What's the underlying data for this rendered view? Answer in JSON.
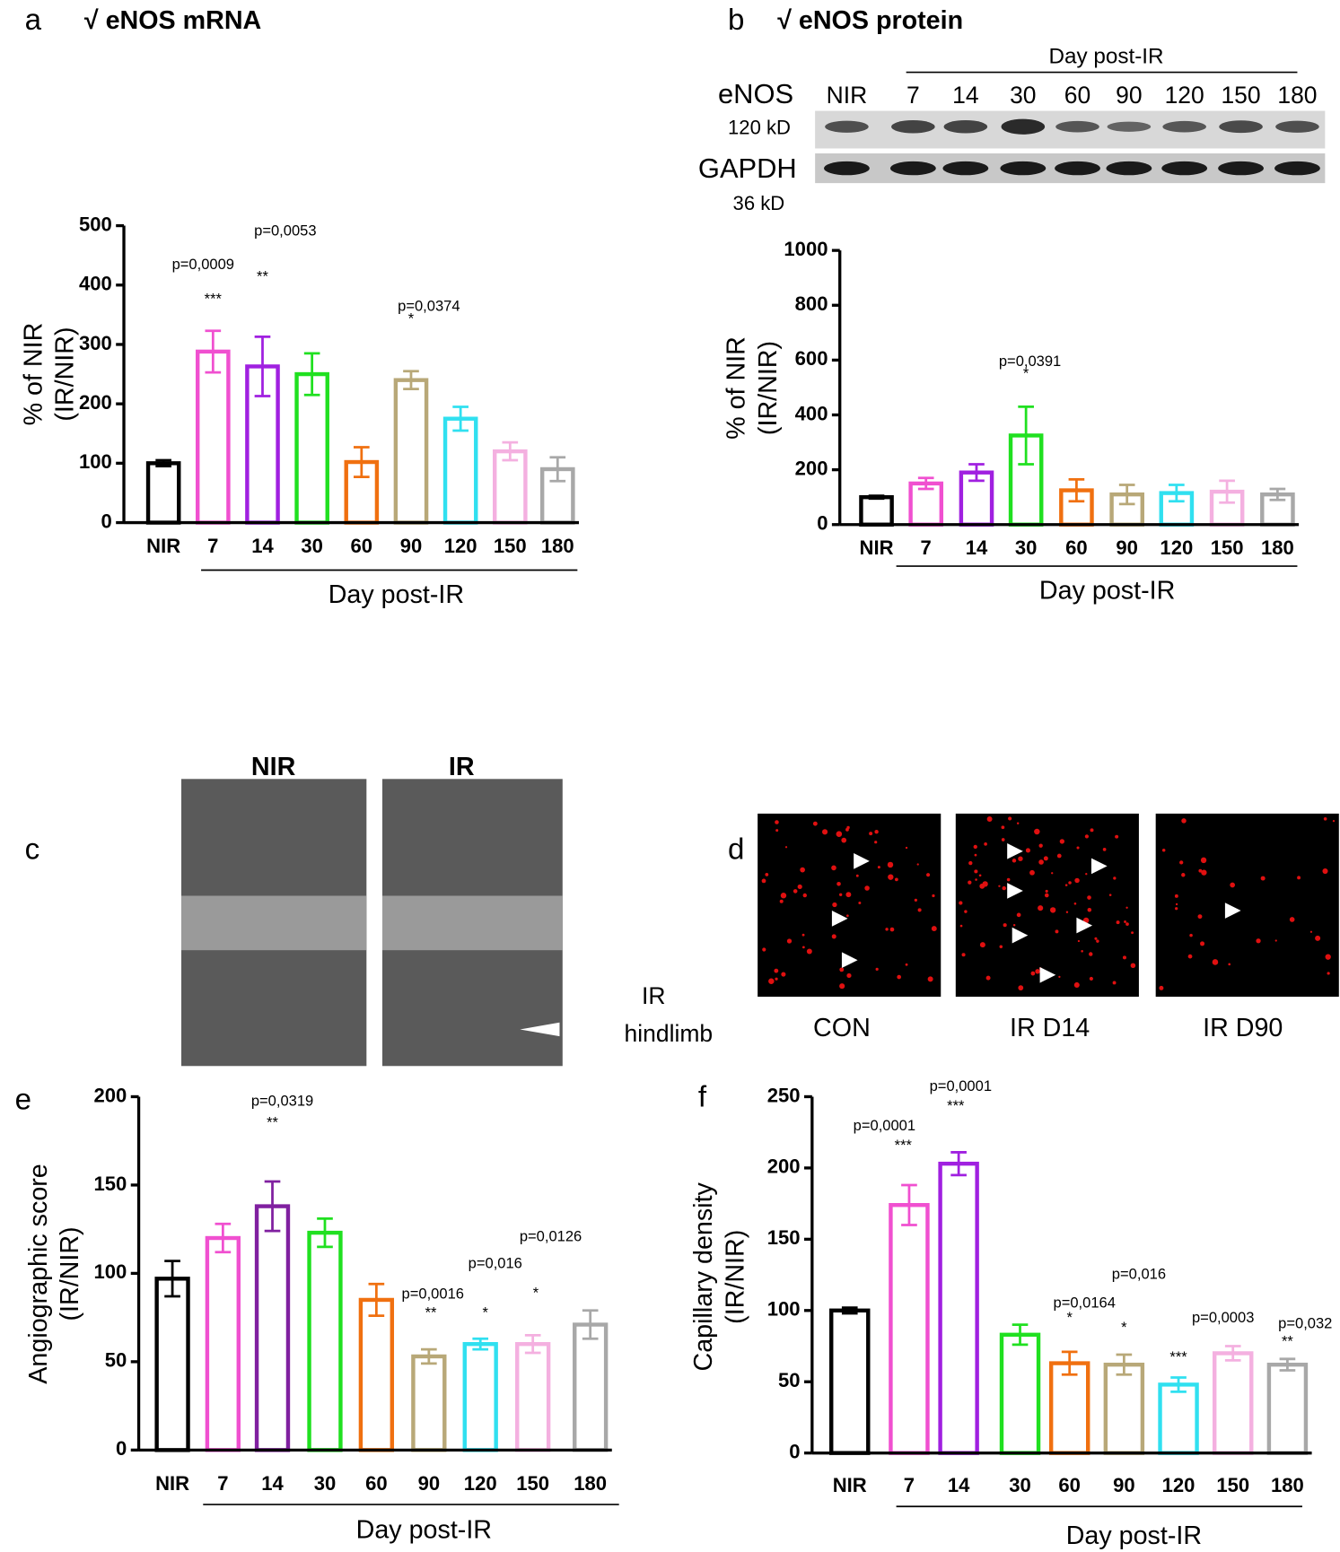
{
  "chart_data": [
    {
      "type": "bar",
      "letter": "a",
      "title": "√ eNOS mRNA",
      "ylabel": [
        "% of NIR",
        "(IR/NIR)"
      ],
      "xlabel": "Day post-IR",
      "categories": [
        "NIR",
        "7",
        "14",
        "30",
        "60",
        "90",
        "120",
        "150",
        "180"
      ],
      "values": [
        100,
        288,
        263,
        250,
        102,
        240,
        175,
        120,
        90
      ],
      "errors": [
        5,
        35,
        50,
        35,
        25,
        15,
        20,
        15,
        20
      ],
      "colors": [
        "#000000",
        "#f050d0",
        "#a020e0",
        "#20e020",
        "#f07010",
        "#b8a878",
        "#30e0f0",
        "#f4b0e0",
        "#a8a8a8"
      ],
      "ylim": [
        0,
        500
      ],
      "yticks": [
        0,
        100,
        200,
        300,
        400,
        500
      ],
      "annotations": [
        "p=0,0009",
        "***",
        "p=0,0053",
        "**",
        "p=0,0374",
        "*"
      ]
    },
    {
      "type": "bar",
      "letter": "b",
      "title": "√ eNOS protein",
      "ylabel": [
        "% of NIR",
        "(IR/NIR)"
      ],
      "xlabel": "Day post-IR",
      "categories": [
        "NIR",
        "7",
        "14",
        "30",
        "60",
        "90",
        "120",
        "150",
        "180"
      ],
      "values": [
        100,
        150,
        190,
        325,
        125,
        110,
        115,
        120,
        110
      ],
      "errors": [
        5,
        20,
        30,
        105,
        40,
        35,
        30,
        40,
        20
      ],
      "colors": [
        "#000000",
        "#f050d0",
        "#a020e0",
        "#20e020",
        "#f07010",
        "#b8a878",
        "#30e0f0",
        "#f4b0e0",
        "#a8a8a8"
      ],
      "ylim": [
        0,
        1000
      ],
      "yticks": [
        0,
        200,
        400,
        600,
        800,
        1000
      ],
      "annotations": [
        "p=0,0391",
        "*"
      ]
    },
    {
      "type": "bar",
      "letter": "e",
      "ylabel": [
        "Angiographic score",
        "(IR/NIR)"
      ],
      "xlabel": "Day post-IR",
      "categories": [
        "NIR",
        "7",
        "14",
        "30",
        "60",
        "90",
        "120",
        "150",
        "180"
      ],
      "values": [
        97,
        120,
        138,
        123,
        85,
        53,
        60,
        60,
        71
      ],
      "errors": [
        10,
        8,
        14,
        8,
        9,
        4,
        3,
        5,
        8
      ],
      "colors": [
        "#000000",
        "#f050d0",
        "#8020a0",
        "#20e020",
        "#f07010",
        "#b8a878",
        "#30e0f0",
        "#f4b0e0",
        "#a8a8a8"
      ],
      "ylim": [
        0,
        200
      ],
      "yticks": [
        0,
        50,
        100,
        150,
        200
      ],
      "annotations": [
        "p=0,0319",
        "**",
        "p=0,0016",
        "**",
        "p=0,016",
        "*",
        "p=0,0126",
        "*"
      ]
    },
    {
      "type": "bar",
      "letter": "f",
      "ylabel": [
        "Capillary density",
        "(IR/NIR)"
      ],
      "xlabel": "Day post-IR",
      "categories": [
        "NIR",
        "7",
        "14",
        "30",
        "60",
        "90",
        "120",
        "150",
        "180"
      ],
      "values": [
        100,
        174,
        203,
        83,
        63,
        62,
        48,
        70,
        62
      ],
      "errors": [
        2,
        14,
        8,
        7,
        8,
        7,
        5,
        5,
        4
      ],
      "colors": [
        "#000000",
        "#f050d0",
        "#a020e0",
        "#20e020",
        "#f07010",
        "#b8a878",
        "#30e0f0",
        "#f4b0e0",
        "#a8a8a8"
      ],
      "ylim": [
        0,
        250
      ],
      "yticks": [
        0,
        50,
        100,
        150,
        200,
        250
      ],
      "annotations": [
        "p=0,0001",
        "***",
        "p=0,0001",
        "***",
        "p=0,0164",
        "*",
        "p=0,016",
        "*",
        "p=0,0003",
        "***",
        "p=0,032",
        "**"
      ]
    }
  ],
  "blot": {
    "header": "Day post-IR",
    "lanes": [
      "NIR",
      "7",
      "14",
      "30",
      "60",
      "90",
      "120",
      "150",
      "180"
    ],
    "protein": "eNOS",
    "protein_kd": "120 kD",
    "control": "GAPDH",
    "control_kd": "36 kD"
  },
  "panel_c": {
    "letter": "c",
    "left": "NIR",
    "right": "IR",
    "arrow_label": [
      "IR",
      "hindlimb"
    ]
  },
  "panel_d": {
    "letter": "d",
    "labels": [
      "CON",
      "IR D14",
      "IR D90"
    ]
  }
}
